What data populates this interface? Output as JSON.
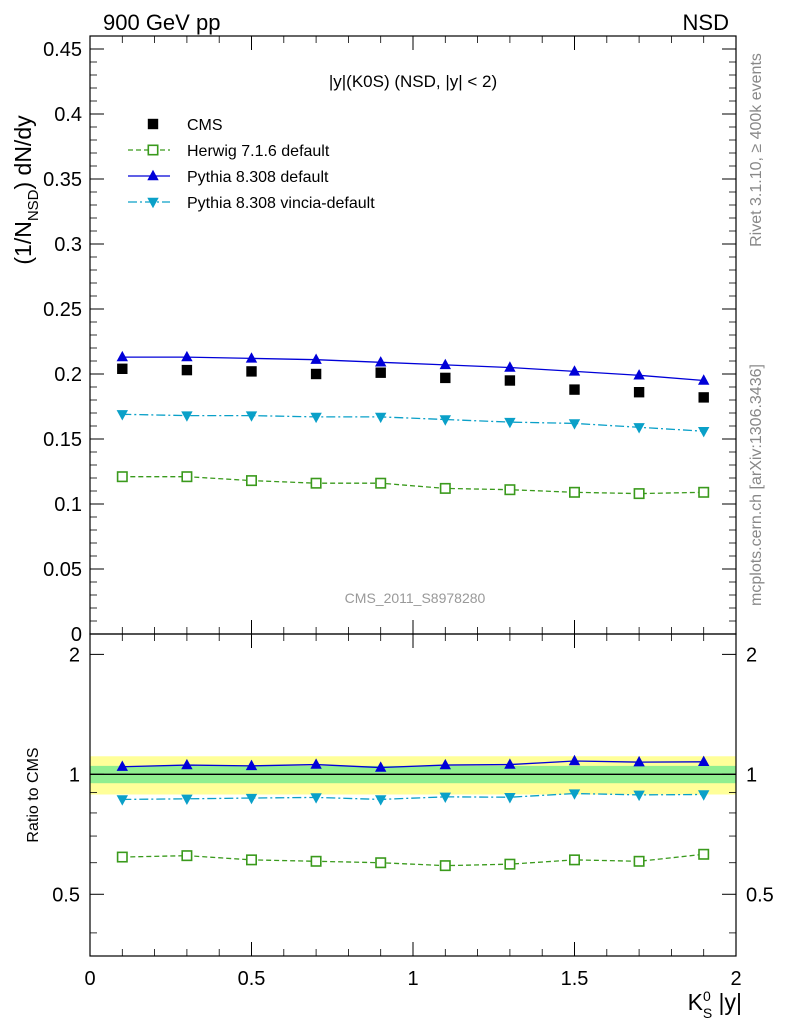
{
  "header": {
    "left": "900 GeV pp",
    "right": "NSD"
  },
  "side_labels": {
    "rivet": "Rivet 3.1.10, ≥ 400k events",
    "mcplots": "mcplots.cern.ch [arXiv:1306.3436]"
  },
  "chart_data": [
    {
      "type": "scatter",
      "title": "|y|(K0S) (NSD, |y| < 2)",
      "ylabel": "(1/N_NSD) dN/dy",
      "ylabel_parts": {
        "a": "(1/N",
        "sub": "NSD",
        "b": ") dN/dy"
      },
      "watermark": "CMS_2011_S8978280",
      "xlim": [
        0,
        2
      ],
      "ylim": [
        0,
        0.46
      ],
      "y_ticks": [
        {
          "v": 0,
          "label": "0"
        },
        {
          "v": 0.05,
          "label": "0.05"
        },
        {
          "v": 0.1,
          "label": "0.1"
        },
        {
          "v": 0.15,
          "label": "0.15"
        },
        {
          "v": 0.2,
          "label": "0.2"
        },
        {
          "v": 0.25,
          "label": "0.25"
        },
        {
          "v": 0.3,
          "label": "0.3"
        },
        {
          "v": 0.35,
          "label": "0.35"
        },
        {
          "v": 0.4,
          "label": "0.4"
        },
        {
          "v": 0.45,
          "label": "0.45"
        }
      ],
      "x": [
        0.1,
        0.3,
        0.5,
        0.7,
        0.9,
        1.1,
        1.3,
        1.5,
        1.7,
        1.9
      ],
      "legend_placement": "top-left",
      "series": [
        {
          "name": "CMS",
          "marker": "square",
          "color": "#000000",
          "line": "none",
          "values": [
            0.204,
            0.203,
            0.202,
            0.2,
            0.201,
            0.197,
            0.195,
            0.188,
            0.186,
            0.182
          ]
        },
        {
          "name": "Herwig 7.1.6 default",
          "marker": "open-square",
          "color": "#3a9a1c",
          "line": "dashed",
          "values": [
            0.121,
            0.121,
            0.118,
            0.116,
            0.116,
            0.112,
            0.111,
            0.109,
            0.108,
            0.109
          ]
        },
        {
          "name": "Pythia 8.308 default",
          "marker": "triangle-up",
          "color": "#0000d8",
          "line": "solid",
          "values": [
            0.213,
            0.213,
            0.212,
            0.211,
            0.209,
            0.207,
            0.205,
            0.202,
            0.199,
            0.195
          ]
        },
        {
          "name": "Pythia 8.308 vincia-default",
          "marker": "triangle-down",
          "color": "#0aa0c8",
          "line": "dashdot",
          "values": [
            0.169,
            0.168,
            0.168,
            0.167,
            0.167,
            0.165,
            0.163,
            0.162,
            0.159,
            0.156
          ]
        }
      ]
    },
    {
      "type": "line",
      "ylabel": "Ratio to CMS",
      "xlabel": "K⁰S |y|",
      "xlabel_parts": {
        "k": "K",
        "sup": "0",
        "sub": "S",
        "rest": " |y|"
      },
      "xlim": [
        0,
        2
      ],
      "ylim": [
        0.35,
        2.25
      ],
      "x_ticks": [
        {
          "v": 0,
          "label": "0"
        },
        {
          "v": 0.5,
          "label": "0.5"
        },
        {
          "v": 1,
          "label": "1"
        },
        {
          "v": 1.5,
          "label": "1.5"
        },
        {
          "v": 2,
          "label": "2"
        }
      ],
      "y_ticks": [
        {
          "v": 0.5,
          "label": "0.5"
        },
        {
          "v": 1,
          "label": "1"
        },
        {
          "v": 2,
          "label": "2"
        }
      ],
      "bands": {
        "inner": {
          "lo": 0.95,
          "hi": 1.05,
          "color": "#90ee90"
        },
        "outer": {
          "lo": 0.89,
          "hi": 1.11,
          "color": "#ffff99"
        }
      },
      "reference": 1.0,
      "x": [
        0.1,
        0.3,
        0.5,
        0.7,
        0.9,
        1.1,
        1.3,
        1.5,
        1.7,
        1.9
      ],
      "series": [
        {
          "name": "Herwig 7.1.6 default",
          "marker": "open-square",
          "color": "#3a9a1c",
          "line": "dashed",
          "values": [
            0.62,
            0.625,
            0.61,
            0.605,
            0.6,
            0.59,
            0.595,
            0.61,
            0.605,
            0.63
          ]
        },
        {
          "name": "Pythia 8.308 default",
          "marker": "triangle-up",
          "color": "#0000d8",
          "line": "solid",
          "values": [
            1.045,
            1.055,
            1.05,
            1.058,
            1.04,
            1.055,
            1.058,
            1.08,
            1.073,
            1.075
          ]
        },
        {
          "name": "Pythia 8.308 vincia-default",
          "marker": "triangle-down",
          "color": "#0aa0c8",
          "line": "dashdot",
          "values": [
            0.865,
            0.868,
            0.872,
            0.875,
            0.865,
            0.878,
            0.876,
            0.895,
            0.888,
            0.89
          ]
        }
      ]
    }
  ]
}
